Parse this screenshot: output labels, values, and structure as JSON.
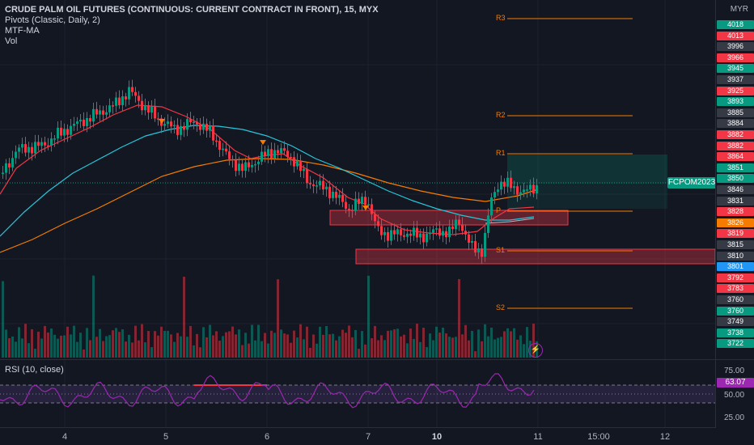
{
  "legend": {
    "title": "CRUDE PALM OIL FUTURES (CONTINUOUS: CURRENT CONTRACT IN FRONT), 15, MYX",
    "studies": [
      "Pivots (Classic, Daily, 2)",
      "MTF-MA",
      "Vol"
    ]
  },
  "currency": "MYR",
  "symbol_tag": "FCPOM2023",
  "pivot_labels": {
    "r3": "R3",
    "r2": "R2",
    "r1": "R1",
    "p": "P",
    "s1": "S1",
    "s2": "S2"
  },
  "rsi": {
    "label": "RSI (10, close)",
    "value": "63.07",
    "ticks": [
      "75.00",
      "50.00",
      "25.00"
    ]
  },
  "time_axis": [
    "4",
    "5",
    "6",
    "7",
    "10",
    "11",
    "15:00",
    "12"
  ],
  "colors": {
    "up": "#089981",
    "down": "#f23645",
    "bg": "#131722",
    "rsi": "#9c27b0",
    "pivot": "#f57c00"
  },
  "price_labels": [
    {
      "text": "4018",
      "color": "#089981"
    },
    {
      "text": "4013",
      "color": "#f23645"
    },
    {
      "text": "3996",
      "color": "#363a45"
    },
    {
      "text": "3966",
      "color": "#f23645"
    },
    {
      "text": "3945",
      "color": "#089981"
    },
    {
      "text": "3937",
      "color": "#363a45"
    },
    {
      "text": "3925",
      "color": "#f23645"
    },
    {
      "text": "3893",
      "color": "#089981"
    },
    {
      "text": "3885",
      "color": "#363a45"
    },
    {
      "text": "3884",
      "color": "#363a45"
    },
    {
      "text": "3882",
      "color": "#f23645"
    },
    {
      "text": "3882",
      "color": "#f23645"
    },
    {
      "text": "3864",
      "color": "#f23645"
    },
    {
      "text": "3851",
      "color": "#089981"
    },
    {
      "text": "3850",
      "color": "#089981"
    },
    {
      "text": "3846",
      "color": "#363a45"
    },
    {
      "text": "3831",
      "color": "#363a45"
    },
    {
      "text": "3828",
      "color": "#f23645"
    },
    {
      "text": "3826",
      "color": "#f57c00"
    },
    {
      "text": "3819",
      "color": "#f23645"
    },
    {
      "text": "3815",
      "color": "#363a45"
    },
    {
      "text": "3810",
      "color": "#363a45"
    },
    {
      "text": "3801",
      "color": "#2196f3"
    },
    {
      "text": "3792",
      "color": "#f23645"
    },
    {
      "text": "3783",
      "color": "#f23645"
    },
    {
      "text": "3760",
      "color": "#363a45"
    },
    {
      "text": "3760",
      "color": "#089981"
    },
    {
      "text": "3749",
      "color": "#363a45"
    },
    {
      "text": "3738",
      "color": "#089981"
    },
    {
      "text": "3722",
      "color": "#089981"
    }
  ]
}
